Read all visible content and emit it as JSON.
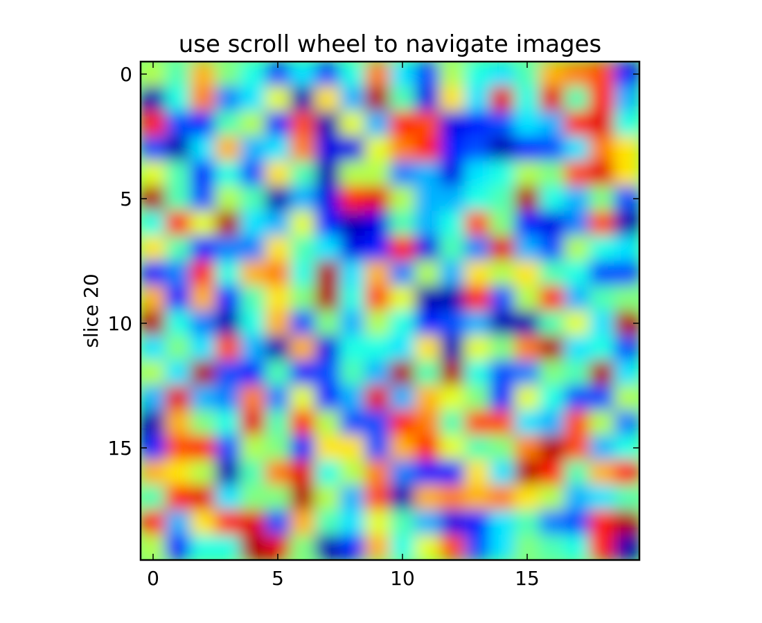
{
  "chart_data": {
    "type": "heatmap",
    "title": "use scroll wheel to navigate images",
    "xlabel": "",
    "ylabel": "slice 20",
    "colormap": "jet",
    "interpolation": "smooth",
    "x_ticks": [
      0,
      5,
      10,
      15
    ],
    "y_ticks": [
      0,
      5,
      10,
      15
    ],
    "xlim": [
      -0.5,
      19.5
    ],
    "ylim": [
      19.5,
      -0.5
    ],
    "y_axis_direction": "down",
    "values": [
      [
        0.55,
        0.45,
        0.7,
        0.5,
        0.4,
        0.2,
        0.35,
        0.2,
        0.4,
        0.75,
        0.35,
        0.2,
        0.55,
        0.4,
        0.35,
        0.45,
        0.7,
        0.75,
        0.8,
        0.15
      ],
      [
        0.05,
        0.4,
        0.75,
        0.25,
        0.35,
        0.6,
        0.05,
        0.65,
        0.3,
        0.95,
        0.45,
        0.1,
        0.65,
        0.35,
        0.9,
        0.4,
        0.9,
        0.45,
        0.85,
        0.3
      ],
      [
        0.85,
        0.2,
        0.15,
        0.45,
        0.55,
        0.15,
        0.8,
        0.05,
        0.6,
        0.3,
        0.85,
        0.8,
        0.1,
        0.15,
        0.2,
        0.35,
        0.3,
        0.85,
        0.9,
        0.4
      ],
      [
        0.2,
        0.05,
        0.35,
        0.7,
        0.3,
        0.35,
        0.75,
        0.1,
        0.1,
        0.6,
        0.75,
        0.85,
        0.15,
        0.2,
        0.05,
        0.15,
        0.2,
        0.35,
        0.75,
        0.65
      ],
      [
        0.6,
        0.45,
        0.15,
        0.4,
        0.2,
        0.65,
        0.45,
        0.05,
        0.55,
        0.55,
        0.25,
        0.3,
        0.1,
        0.35,
        0.4,
        0.55,
        0.5,
        0.8,
        0.9,
        0.65
      ],
      [
        0.95,
        0.45,
        0.2,
        0.55,
        0.45,
        0.05,
        0.3,
        0.1,
        0.85,
        0.9,
        0.55,
        0.3,
        0.3,
        0.4,
        0.45,
        0.95,
        0.4,
        0.3,
        0.5,
        0.2
      ],
      [
        0.4,
        0.85,
        0.6,
        0.95,
        0.35,
        0.3,
        0.6,
        0.15,
        0.05,
        0.1,
        0.45,
        0.3,
        0.4,
        0.8,
        0.5,
        0.15,
        0.1,
        0.25,
        0.8,
        0.05
      ],
      [
        0.65,
        0.45,
        0.15,
        0.25,
        0.25,
        0.65,
        0.45,
        0.35,
        0.1,
        0.15,
        0.85,
        0.1,
        0.45,
        0.25,
        0.9,
        0.3,
        0.2,
        0.55,
        0.4,
        0.35
      ],
      [
        0.15,
        0.25,
        0.85,
        0.4,
        0.7,
        0.75,
        0.4,
        0.95,
        0.35,
        0.7,
        0.25,
        0.55,
        0.3,
        0.65,
        0.55,
        0.65,
        0.45,
        0.4,
        0.2,
        0.2
      ],
      [
        0.7,
        0.15,
        0.7,
        0.15,
        0.45,
        0.65,
        0.5,
        0.95,
        0.4,
        0.8,
        0.6,
        0.05,
        0.05,
        0.85,
        0.2,
        0.55,
        0.85,
        0.3,
        0.45,
        0.5
      ],
      [
        0.95,
        0.4,
        0.25,
        0.05,
        0.4,
        0.7,
        0.2,
        0.5,
        0.3,
        0.55,
        0.4,
        0.15,
        0.2,
        0.3,
        0.05,
        0.05,
        0.45,
        0.6,
        0.35,
        0.95
      ],
      [
        0.35,
        0.5,
        0.35,
        0.8,
        0.3,
        0.05,
        0.7,
        0.1,
        0.4,
        0.4,
        0.35,
        0.65,
        0.05,
        0.6,
        0.5,
        0.75,
        0.95,
        0.35,
        0.4,
        0.2
      ],
      [
        0.55,
        0.35,
        0.95,
        0.2,
        0.15,
        0.45,
        0.15,
        0.2,
        0.45,
        0.3,
        0.95,
        0.45,
        0.95,
        0.4,
        0.2,
        0.25,
        0.5,
        0.45,
        0.95,
        0.35
      ],
      [
        0.3,
        0.9,
        0.3,
        0.25,
        0.75,
        0.25,
        0.6,
        0.15,
        0.3,
        0.9,
        0.3,
        0.7,
        0.6,
        0.5,
        0.15,
        0.6,
        0.4,
        0.2,
        0.2,
        0.55
      ],
      [
        0.05,
        0.7,
        0.5,
        0.4,
        0.9,
        0.45,
        0.85,
        0.55,
        0.2,
        0.2,
        0.85,
        0.75,
        0.45,
        0.8,
        0.8,
        0.35,
        0.3,
        0.8,
        0.55,
        0.25
      ],
      [
        0.15,
        0.8,
        0.85,
        0.2,
        0.55,
        0.5,
        0.15,
        0.65,
        0.65,
        0.2,
        0.7,
        0.85,
        0.6,
        0.45,
        0.5,
        0.75,
        0.95,
        0.8,
        0.3,
        0.4
      ],
      [
        0.7,
        0.65,
        0.55,
        0.05,
        0.45,
        0.75,
        0.9,
        0.4,
        0.55,
        0.75,
        0.25,
        0.15,
        0.15,
        0.65,
        0.35,
        0.95,
        0.85,
        0.45,
        0.7,
        0.85
      ],
      [
        0.45,
        0.85,
        0.9,
        0.35,
        0.5,
        0.5,
        0.95,
        0.55,
        0.3,
        0.8,
        0.05,
        0.7,
        0.75,
        0.7,
        0.75,
        0.65,
        0.55,
        0.3,
        0.35,
        0.45
      ],
      [
        0.85,
        0.3,
        0.65,
        0.85,
        0.9,
        0.2,
        0.7,
        0.45,
        0.35,
        0.6,
        0.45,
        0.3,
        0.1,
        0.15,
        0.35,
        0.45,
        0.25,
        0.2,
        0.85,
        0.95
      ],
      [
        0.55,
        0.15,
        0.4,
        0.4,
        0.95,
        0.9,
        0.5,
        0.05,
        0.15,
        0.7,
        0.4,
        0.6,
        0.8,
        0.2,
        0.35,
        0.5,
        0.45,
        0.4,
        0.85,
        0.05
      ]
    ]
  }
}
